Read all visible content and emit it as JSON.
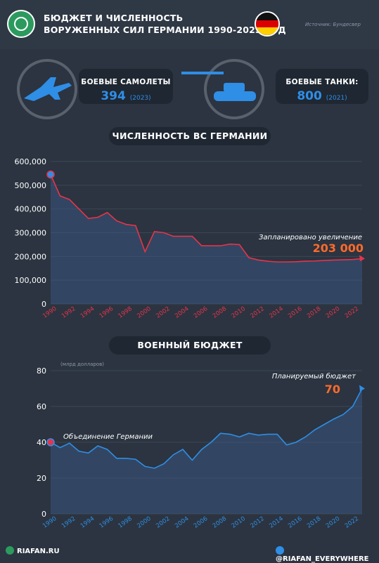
{
  "header": {
    "title_line1": "БЮДЖЕТ И ЧИСЛЕННОСТЬ",
    "title_line2": "ВОРУЖЕННЫХ СИЛ ГЕРМАНИИ 1990-2023 ГОД",
    "source": "Источник: Бундесвер"
  },
  "stats": {
    "aircraft": {
      "label": "БОЕВЫЕ САМОЛЕТЫ",
      "value": "394",
      "year": "(2023)"
    },
    "tanks": {
      "label": "БОЕВЫЕ ТАНКИ:",
      "value": "800",
      "year": "(2021)"
    }
  },
  "colors": {
    "accent_blue": "#2f8ee6",
    "accent_red": "#e8334a",
    "highlight_orange": "#ff6a2b",
    "flag": [
      "#111111",
      "#dd0000",
      "#ffce00"
    ]
  },
  "chart_data": [
    {
      "type": "line",
      "title": "ЧИСЛЕННОСТЬ ВС ГЕРМАНИИ",
      "x": [
        1990,
        1991,
        1992,
        1993,
        1994,
        1995,
        1996,
        1997,
        1998,
        1999,
        2000,
        2001,
        2002,
        2003,
        2004,
        2005,
        2006,
        2007,
        2008,
        2009,
        2010,
        2011,
        2012,
        2013,
        2014,
        2015,
        2016,
        2017,
        2018,
        2019,
        2020,
        2021,
        2022,
        2023
      ],
      "series": [
        {
          "values": [
            545000,
            455000,
            440000,
            400000,
            360000,
            365000,
            385000,
            350000,
            335000,
            330000,
            220000,
            305000,
            300000,
            285000,
            285000,
            285000,
            245000,
            245000,
            245000,
            252000,
            250000,
            195000,
            185000,
            180000,
            177000,
            177000,
            178000,
            180000,
            181000,
            183000,
            185000,
            186000,
            187000,
            191000
          ]
        }
      ],
      "xticks": [
        "1990",
        "1992",
        "1994",
        "1996",
        "1998",
        "2000",
        "2002",
        "2004",
        "2006",
        "2008",
        "2010",
        "2012",
        "2014",
        "2016",
        "2018",
        "2020",
        "2022"
      ],
      "yticks": [
        "0",
        "100,000",
        "200,000",
        "300,000",
        "400,000",
        "500,000",
        "600,000"
      ],
      "ylim": [
        0,
        600000
      ],
      "annotation": {
        "label": "Запланировано увеличение",
        "value": "203 000"
      }
    },
    {
      "type": "area",
      "title": "ВОЕННЫЙ БЮДЖЕТ",
      "ylabel": "(млрд долларов)",
      "x": [
        1990,
        1991,
        1992,
        1993,
        1994,
        1995,
        1996,
        1997,
        1998,
        1999,
        2000,
        2001,
        2002,
        2003,
        2004,
        2005,
        2006,
        2007,
        2008,
        2009,
        2010,
        2011,
        2012,
        2013,
        2014,
        2015,
        2016,
        2017,
        2018,
        2019,
        2020,
        2021,
        2022,
        2023
      ],
      "series": [
        {
          "values": [
            40,
            37,
            39.5,
            35,
            34,
            38,
            36,
            31,
            31,
            30.5,
            26.5,
            25.5,
            28,
            33,
            36,
            30,
            36,
            40,
            45,
            44.5,
            43,
            45,
            44,
            44.5,
            44.5,
            38.5,
            40,
            43,
            47,
            50,
            53,
            55.5,
            60,
            70
          ]
        }
      ],
      "xticks": [
        "1990",
        "1992",
        "1994",
        "1996",
        "1998",
        "2000",
        "2002",
        "2004",
        "2006",
        "2008",
        "2010",
        "2012",
        "2014",
        "2016",
        "2018",
        "2020",
        "2022"
      ],
      "yticks": [
        "0",
        "20",
        "40",
        "60",
        "80"
      ],
      "ylim": [
        0,
        80
      ],
      "annotations": [
        {
          "label": "Объединение Германии"
        },
        {
          "label": "Планируемый бюджет",
          "value": "70"
        }
      ]
    }
  ],
  "footer": {
    "left": "RIAFAN.RU",
    "right": "@RIAFAN_EVERYWHERE"
  }
}
